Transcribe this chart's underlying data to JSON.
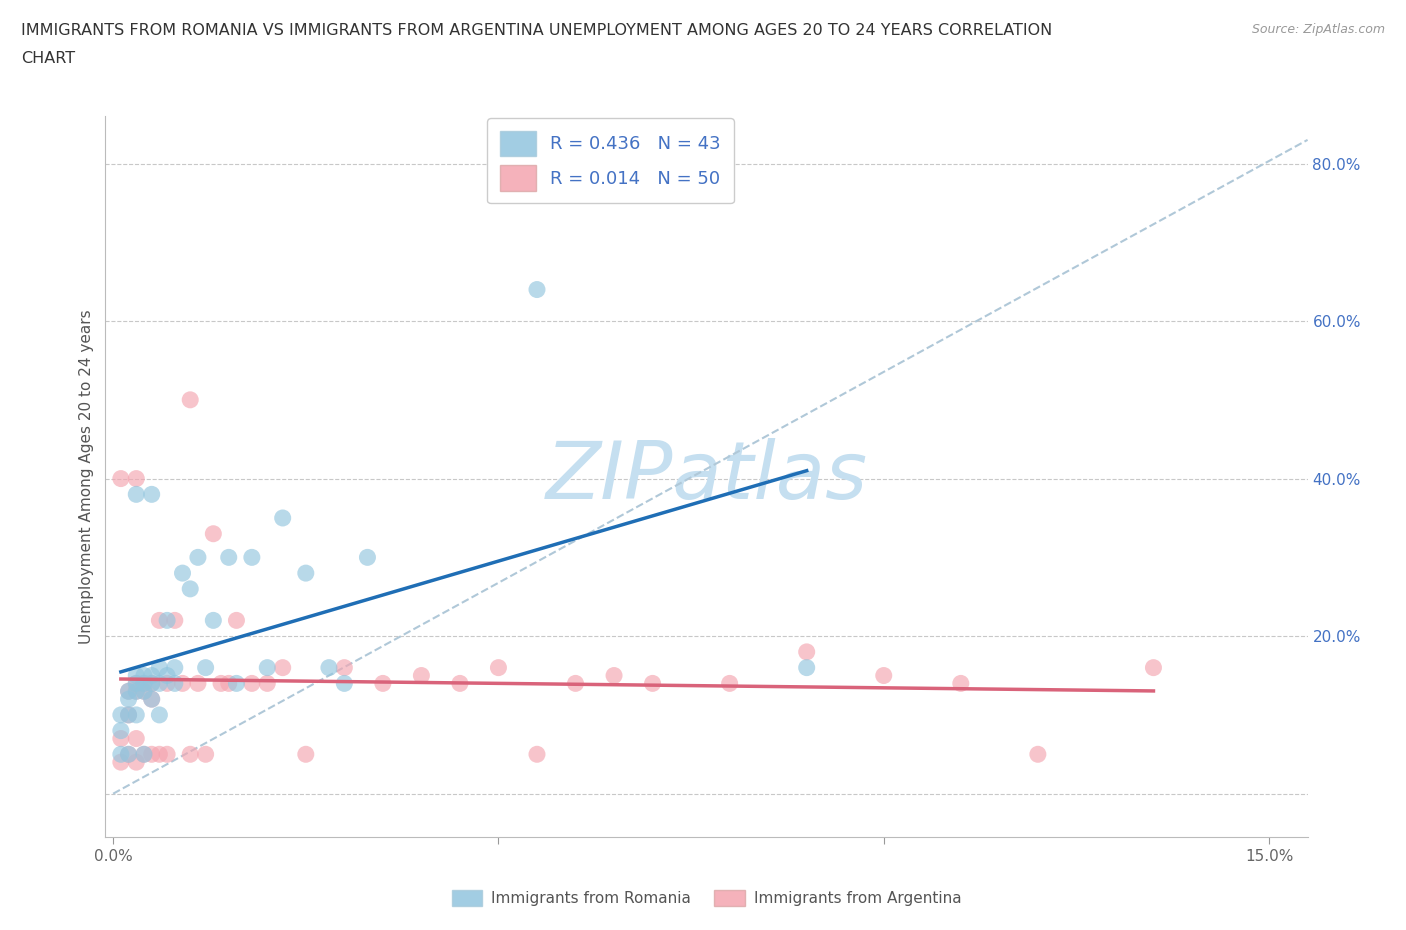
{
  "title_line1": "IMMIGRANTS FROM ROMANIA VS IMMIGRANTS FROM ARGENTINA UNEMPLOYMENT AMONG AGES 20 TO 24 YEARS CORRELATION",
  "title_line2": "CHART",
  "source": "Source: ZipAtlas.com",
  "ylabel": "Unemployment Among Ages 20 to 24 years",
  "xlabel_romania": "Immigrants from Romania",
  "xlabel_argentina": "Immigrants from Argentina",
  "r_romania": 0.436,
  "n_romania": 43,
  "r_argentina": 0.014,
  "n_argentina": 50,
  "xlim_min": -0.001,
  "xlim_max": 0.155,
  "ylim_min": -0.055,
  "ylim_max": 0.86,
  "ytick_vals": [
    0.0,
    0.2,
    0.4,
    0.6,
    0.8
  ],
  "ytick_labels": [
    "",
    "20.0%",
    "40.0%",
    "60.0%",
    "80.0%"
  ],
  "xtick_vals": [
    0.0,
    0.05,
    0.1,
    0.15
  ],
  "xtick_labels": [
    "0.0%",
    "",
    "",
    "15.0%"
  ],
  "color_romania": "#92c5de",
  "color_argentina": "#f4a5b0",
  "color_romania_line": "#1f6eb5",
  "color_argentina_line": "#d9637a",
  "background_color": "#ffffff",
  "grid_color": "#c8c8c8",
  "watermark": "ZIPatlas",
  "watermark_color": "#c5dff0",
  "diag_color": "#b0c8d8",
  "romania_x": [
    0.001,
    0.001,
    0.001,
    0.002,
    0.002,
    0.002,
    0.002,
    0.003,
    0.003,
    0.003,
    0.003,
    0.003,
    0.004,
    0.004,
    0.004,
    0.004,
    0.005,
    0.005,
    0.005,
    0.005,
    0.006,
    0.006,
    0.006,
    0.007,
    0.007,
    0.008,
    0.008,
    0.009,
    0.01,
    0.011,
    0.012,
    0.013,
    0.015,
    0.016,
    0.018,
    0.02,
    0.022,
    0.025,
    0.028,
    0.03,
    0.033,
    0.055,
    0.09
  ],
  "romania_y": [
    0.05,
    0.08,
    0.1,
    0.1,
    0.12,
    0.13,
    0.05,
    0.13,
    0.14,
    0.15,
    0.38,
    0.1,
    0.13,
    0.14,
    0.15,
    0.05,
    0.15,
    0.12,
    0.38,
    0.14,
    0.14,
    0.16,
    0.1,
    0.15,
    0.22,
    0.14,
    0.16,
    0.28,
    0.26,
    0.3,
    0.16,
    0.22,
    0.3,
    0.14,
    0.3,
    0.16,
    0.35,
    0.28,
    0.16,
    0.14,
    0.3,
    0.64,
    0.16
  ],
  "argentina_x": [
    0.001,
    0.001,
    0.001,
    0.002,
    0.002,
    0.002,
    0.003,
    0.003,
    0.003,
    0.003,
    0.003,
    0.004,
    0.004,
    0.004,
    0.005,
    0.005,
    0.005,
    0.006,
    0.006,
    0.007,
    0.007,
    0.008,
    0.009,
    0.01,
    0.01,
    0.011,
    0.012,
    0.013,
    0.014,
    0.015,
    0.016,
    0.018,
    0.02,
    0.022,
    0.025,
    0.03,
    0.035,
    0.04,
    0.045,
    0.05,
    0.055,
    0.06,
    0.065,
    0.07,
    0.08,
    0.09,
    0.1,
    0.11,
    0.12,
    0.135
  ],
  "argentina_y": [
    0.04,
    0.07,
    0.4,
    0.05,
    0.1,
    0.13,
    0.04,
    0.07,
    0.14,
    0.4,
    0.13,
    0.05,
    0.13,
    0.14,
    0.05,
    0.12,
    0.14,
    0.05,
    0.22,
    0.05,
    0.14,
    0.22,
    0.14,
    0.05,
    0.5,
    0.14,
    0.05,
    0.33,
    0.14,
    0.14,
    0.22,
    0.14,
    0.14,
    0.16,
    0.05,
    0.16,
    0.14,
    0.15,
    0.14,
    0.16,
    0.05,
    0.14,
    0.15,
    0.14,
    0.14,
    0.18,
    0.15,
    0.14,
    0.05,
    0.16
  ]
}
